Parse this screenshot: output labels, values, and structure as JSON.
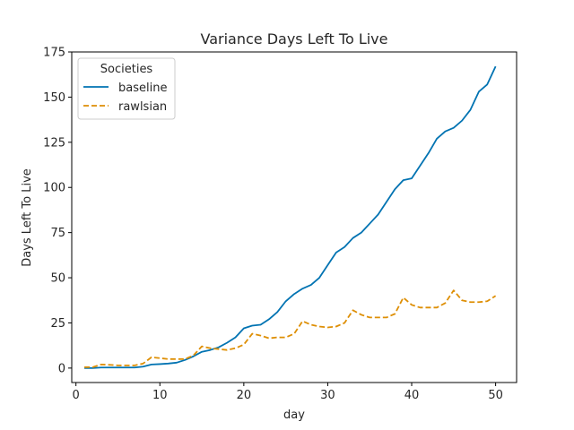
{
  "chart_data": {
    "type": "line",
    "title": "Variance Days Left To Live",
    "xlabel": "day",
    "ylabel": "Days Left To Live",
    "xlim": [
      -0.5,
      52.5
    ],
    "ylim": [
      -8,
      175
    ],
    "xticks": [
      0,
      10,
      20,
      30,
      40,
      50
    ],
    "yticks": [
      0,
      25,
      50,
      75,
      100,
      125,
      150,
      175
    ],
    "legend": {
      "title": "Societies",
      "position": "top-left"
    },
    "series": [
      {
        "name": "baseline",
        "color": "#0173b2",
        "style": "solid",
        "x": [
          1,
          2,
          3,
          4,
          5,
          6,
          7,
          8,
          9,
          10,
          11,
          12,
          13,
          14,
          15,
          16,
          17,
          18,
          19,
          20,
          21,
          22,
          23,
          24,
          25,
          26,
          27,
          28,
          29,
          30,
          31,
          32,
          33,
          34,
          35,
          36,
          37,
          38,
          39,
          40,
          41,
          42,
          43,
          44,
          45,
          46,
          47,
          48,
          49,
          50
        ],
        "y": [
          0,
          0,
          0.3,
          0.3,
          0.3,
          0.3,
          0.3,
          0.8,
          2,
          2.2,
          2.5,
          3,
          4.5,
          6.5,
          9,
          10,
          11.5,
          14,
          17,
          22,
          23.5,
          24,
          27,
          31,
          37,
          41,
          44,
          46,
          50,
          57,
          64,
          67,
          72,
          75,
          80,
          85,
          92,
          99,
          104,
          105,
          112,
          119,
          127,
          131,
          133,
          137,
          143,
          153,
          157,
          167
        ]
      },
      {
        "name": "rawlsian",
        "color": "#de8f05",
        "style": "dashed",
        "x": [
          1,
          2,
          3,
          4,
          5,
          6,
          7,
          8,
          9,
          10,
          11,
          12,
          13,
          14,
          15,
          16,
          17,
          18,
          19,
          20,
          21,
          22,
          23,
          24,
          25,
          26,
          27,
          28,
          29,
          30,
          31,
          32,
          33,
          34,
          35,
          36,
          37,
          38,
          39,
          40,
          41,
          42,
          43,
          44,
          45,
          46,
          47,
          48,
          49,
          50
        ],
        "y": [
          0.5,
          0.5,
          2,
          1.8,
          1.5,
          1.5,
          1.5,
          2.5,
          6,
          5.5,
          5,
          5,
          5,
          7,
          12,
          11,
          10.5,
          10,
          11,
          13,
          19,
          18,
          16.5,
          17,
          17,
          19,
          26,
          24,
          23,
          22.5,
          23,
          25,
          32,
          29.5,
          28,
          28,
          28,
          30,
          39,
          35,
          33.5,
          33.5,
          33.5,
          36,
          43,
          37.5,
          36.5,
          36.5,
          37,
          40
        ]
      }
    ]
  }
}
